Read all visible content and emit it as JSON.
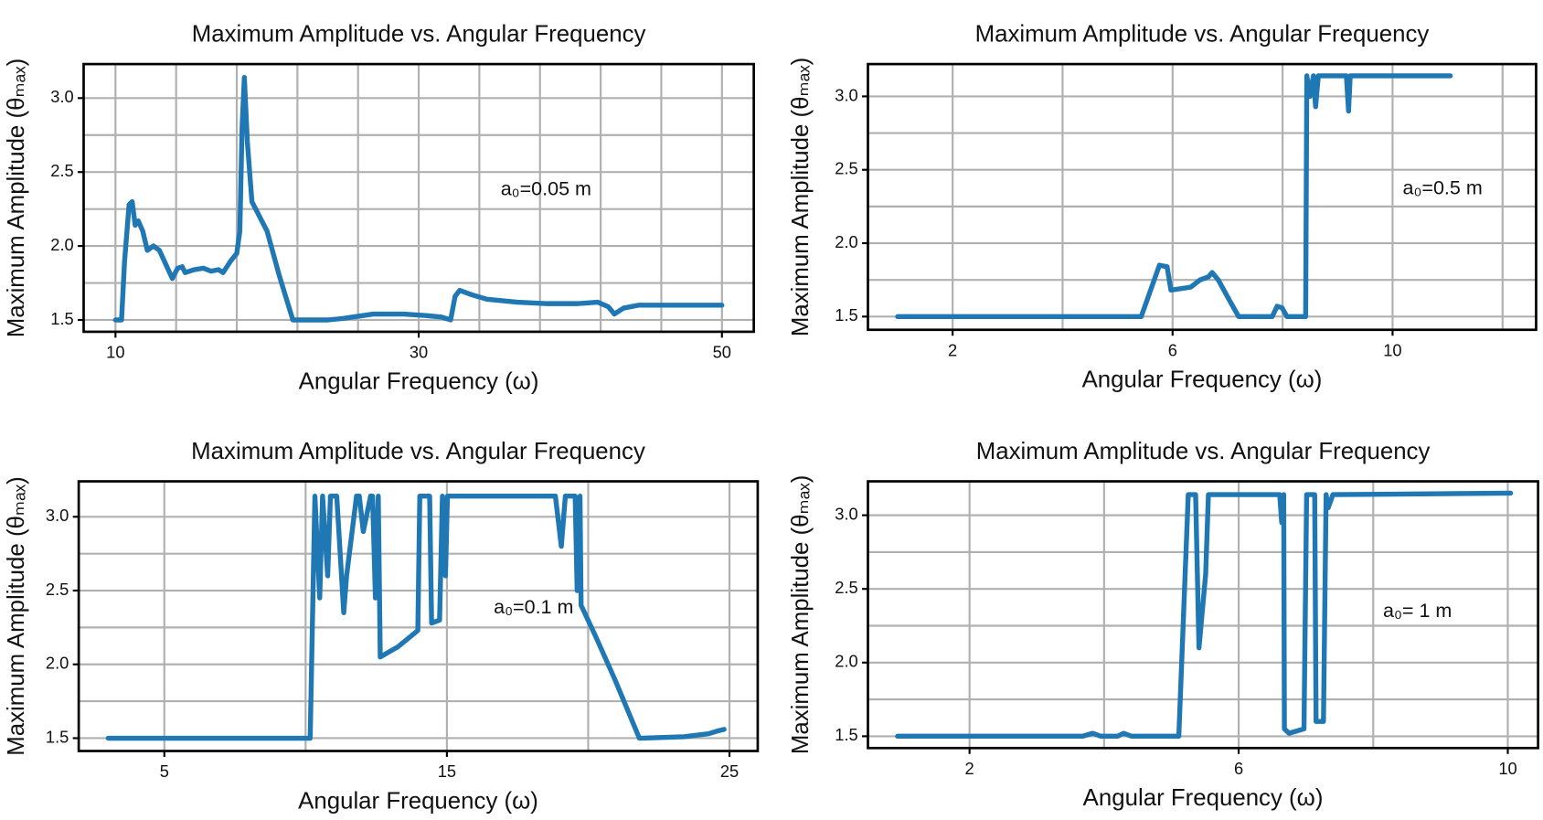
{
  "chart_data": [
    {
      "type": "line",
      "title": "Maximum Amplitude vs. Angular Frequency",
      "x_label": "Angular Frequency (ω)",
      "y_label": "Maximum Amplitude (θₘₐₓ)",
      "annotation": "a₀=0.05 m",
      "color": "#1f77b4",
      "xlim": [
        7.9,
        52.1
      ],
      "ylim": [
        1.42,
        3.23
      ],
      "xticks": [
        10,
        30,
        50
      ],
      "xminor": [
        14,
        18,
        22,
        26,
        34,
        38,
        42,
        46
      ],
      "yticks": [
        1.5,
        {
          "value": 2,
          "label": "2.0"
        },
        2.5,
        {
          "value": 3,
          "label": "3.0"
        }
      ],
      "yminor": [
        1.75,
        2.25,
        2.75
      ],
      "grid": true,
      "x": [
        10,
        10.4,
        10.6,
        10.9,
        11.1,
        11.3,
        11.5,
        11.8,
        12.1,
        12.5,
        12.9,
        13.3,
        13.75,
        14.1,
        14.4,
        14.6,
        15.2,
        15.8,
        16.3,
        16.8,
        17.1,
        17.6,
        18.0,
        18.2,
        18.35,
        18.5,
        18.7,
        19.0,
        19.5,
        20.0,
        20.8,
        21.7,
        24,
        25,
        27,
        29,
        30.5,
        31.5,
        32.1,
        32.4,
        32.7,
        33.5,
        34.5,
        36.5,
        38.5,
        40.5,
        41.8,
        42.5,
        42.9,
        43.5,
        44.5,
        47,
        50
      ],
      "values": [
        1.5,
        1.5,
        1.9,
        2.28,
        2.3,
        2.14,
        2.17,
        2.1,
        1.97,
        2.0,
        1.97,
        1.88,
        1.78,
        1.85,
        1.86,
        1.82,
        1.84,
        1.85,
        1.83,
        1.84,
        1.82,
        1.9,
        1.95,
        2.1,
        2.8,
        3.14,
        2.7,
        2.3,
        2.2,
        2.1,
        1.8,
        1.5,
        1.5,
        1.51,
        1.54,
        1.54,
        1.53,
        1.52,
        1.5,
        1.66,
        1.7,
        1.67,
        1.64,
        1.62,
        1.61,
        1.61,
        1.62,
        1.59,
        1.54,
        1.58,
        1.6,
        1.6,
        1.6
      ]
    },
    {
      "type": "line",
      "title": "Maximum Amplitude vs. Angular Frequency",
      "x_label": "Angular Frequency (ω)",
      "y_label": "Maximum Amplitude (θₘₐₓ)",
      "annotation": "a₀=0.5 m",
      "color": "#1f77b4",
      "xlim": [
        0.46,
        12.61
      ],
      "ylim": [
        1.41,
        3.22
      ],
      "xticks": [
        2,
        6,
        10
      ],
      "xminor": [
        4,
        8,
        12
      ],
      "yticks": [
        1.5,
        {
          "value": 2,
          "label": "2.0"
        },
        2.5,
        {
          "value": 3,
          "label": "3.0"
        }
      ],
      "yminor": [
        1.75,
        2.25,
        2.75
      ],
      "grid": true,
      "x": [
        1.0,
        5.43,
        5.76,
        5.9,
        5.97,
        6.33,
        6.5,
        6.65,
        6.72,
        6.83,
        7.05,
        7.2,
        7.81,
        7.9,
        7.99,
        8.08,
        8.42,
        8.44,
        8.5,
        8.56,
        8.6,
        8.65,
        9.16,
        9.2,
        9.23,
        11.05
      ],
      "values": [
        1.5,
        1.5,
        1.85,
        1.84,
        1.68,
        1.7,
        1.75,
        1.77,
        1.8,
        1.75,
        1.6,
        1.5,
        1.5,
        1.57,
        1.56,
        1.5,
        1.5,
        3.14,
        3.0,
        3.14,
        2.93,
        3.14,
        3.14,
        2.9,
        3.14,
        3.14
      ]
    },
    {
      "type": "line",
      "title": "Maximum Amplitude vs. Angular Frequency",
      "x_label": "Angular Frequency (ω)",
      "y_label": "Maximum Amplitude (θₘₐₓ)",
      "annotation": "a₀=0.1 m",
      "color": "#1f77b4",
      "xlim": [
        1.97,
        26.0
      ],
      "ylim": [
        1.413,
        3.24
      ],
      "xticks": [
        5,
        15,
        25
      ],
      "xminor": [
        10,
        20
      ],
      "yticks": [
        1.5,
        {
          "value": 2,
          "label": "2.0"
        },
        2.5,
        {
          "value": 3,
          "label": "3.0"
        }
      ],
      "yminor": [
        1.75,
        2.25,
        2.75
      ],
      "grid": true,
      "x": [
        3.01,
        10.16,
        10.33,
        10.5,
        10.6,
        10.78,
        10.88,
        11.1,
        11.35,
        11.45,
        11.8,
        11.9,
        12.04,
        12.3,
        12.37,
        12.47,
        12.57,
        12.64,
        13.27,
        13.97,
        14.04,
        14.39,
        14.46,
        14.74,
        14.84,
        14.95,
        15.02,
        18.84,
        19.05,
        19.19,
        19.54,
        19.61,
        19.71,
        19.75,
        20.24,
        20.94,
        21.81,
        23.38,
        24.25,
        24.6,
        24.81
      ],
      "values": [
        1.5,
        1.5,
        3.14,
        2.45,
        3.14,
        2.6,
        3.14,
        3.14,
        2.35,
        2.6,
        3.14,
        3.14,
        2.9,
        3.14,
        3.14,
        2.45,
        3.14,
        2.05,
        2.12,
        2.23,
        3.14,
        3.14,
        2.28,
        2.3,
        3.14,
        2.6,
        3.14,
        3.14,
        2.8,
        3.14,
        3.14,
        2.5,
        3.14,
        2.4,
        2.2,
        1.9,
        1.5,
        1.51,
        1.53,
        1.55,
        1.56
      ]
    },
    {
      "type": "line",
      "title": "Maximum Amplitude vs. Angular Frequency",
      "x_label": "Angular Frequency (ω)",
      "y_label": "Maximum Amplitude (θₘₐₓ)",
      "annotation": "a₀= 1 m",
      "color": "#1f77b4",
      "xlim": [
        0.49,
        10.45
      ],
      "ylim": [
        1.42,
        3.23
      ],
      "xticks": [
        2,
        6,
        10
      ],
      "xminor": [
        4,
        8
      ],
      "yticks": [
        1.5,
        {
          "value": 2,
          "label": "2.0"
        },
        2.5,
        {
          "value": 3,
          "label": "3.0"
        }
      ],
      "yminor": [
        1.75,
        2.25,
        2.75
      ],
      "grid": true,
      "x": [
        0.93,
        3.68,
        3.83,
        3.95,
        4.2,
        4.29,
        4.41,
        5.11,
        5.25,
        5.36,
        5.41,
        5.51,
        5.55,
        6.61,
        6.64,
        6.67,
        6.68,
        6.75,
        6.97,
        7.01,
        7.13,
        7.15,
        7.26,
        7.3,
        7.33,
        7.4,
        10.04
      ],
      "values": [
        1.5,
        1.5,
        1.52,
        1.5,
        1.5,
        1.52,
        1.5,
        1.5,
        3.14,
        3.14,
        2.1,
        2.6,
        3.14,
        3.14,
        2.95,
        3.14,
        1.55,
        1.52,
        1.55,
        3.14,
        3.14,
        1.6,
        1.6,
        3.14,
        3.05,
        3.14,
        3.15
      ]
    }
  ]
}
